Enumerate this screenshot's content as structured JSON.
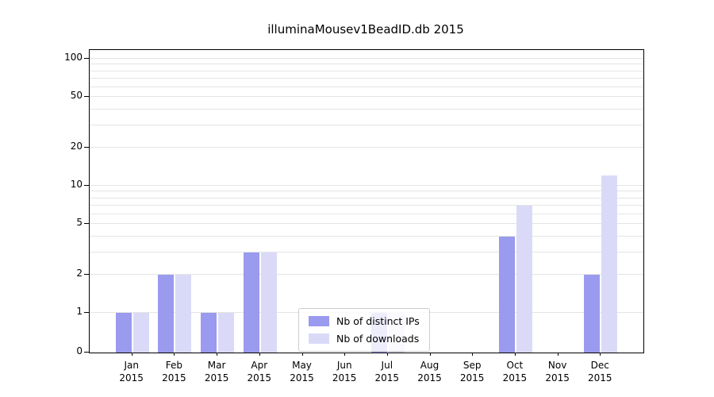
{
  "title": "illuminaMousev1BeadID.db 2015",
  "chart_data": {
    "type": "bar",
    "title": "illuminaMousev1BeadID.db 2015",
    "categories": [
      "Jan",
      "Feb",
      "Mar",
      "Apr",
      "May",
      "Jun",
      "Jul",
      "Aug",
      "Sep",
      "Oct",
      "Nov",
      "Dec"
    ],
    "year_label": "2015",
    "series": [
      {
        "name": "Nb of distinct IPs",
        "color": "#9a9aee",
        "values": [
          1,
          2,
          1,
          3,
          0,
          0,
          1,
          0,
          0,
          4,
          0,
          2
        ]
      },
      {
        "name": "Nb of downloads",
        "color": "#dadaf8",
        "values": [
          1,
          2,
          1,
          3,
          0,
          0,
          1,
          0,
          0,
          7,
          0,
          12
        ]
      }
    ],
    "yticks": [
      0,
      1,
      2,
      5,
      10,
      20,
      50,
      100
    ],
    "minor_gridlines": [
      1,
      2,
      3,
      4,
      5,
      6,
      7,
      8,
      9,
      10,
      20,
      30,
      40,
      50,
      60,
      70,
      80,
      90,
      100
    ],
    "scale": "symlog",
    "ylim": [
      0,
      120
    ],
    "grid": true,
    "legend_position": "lower-center",
    "xlabel": "",
    "ylabel": ""
  }
}
